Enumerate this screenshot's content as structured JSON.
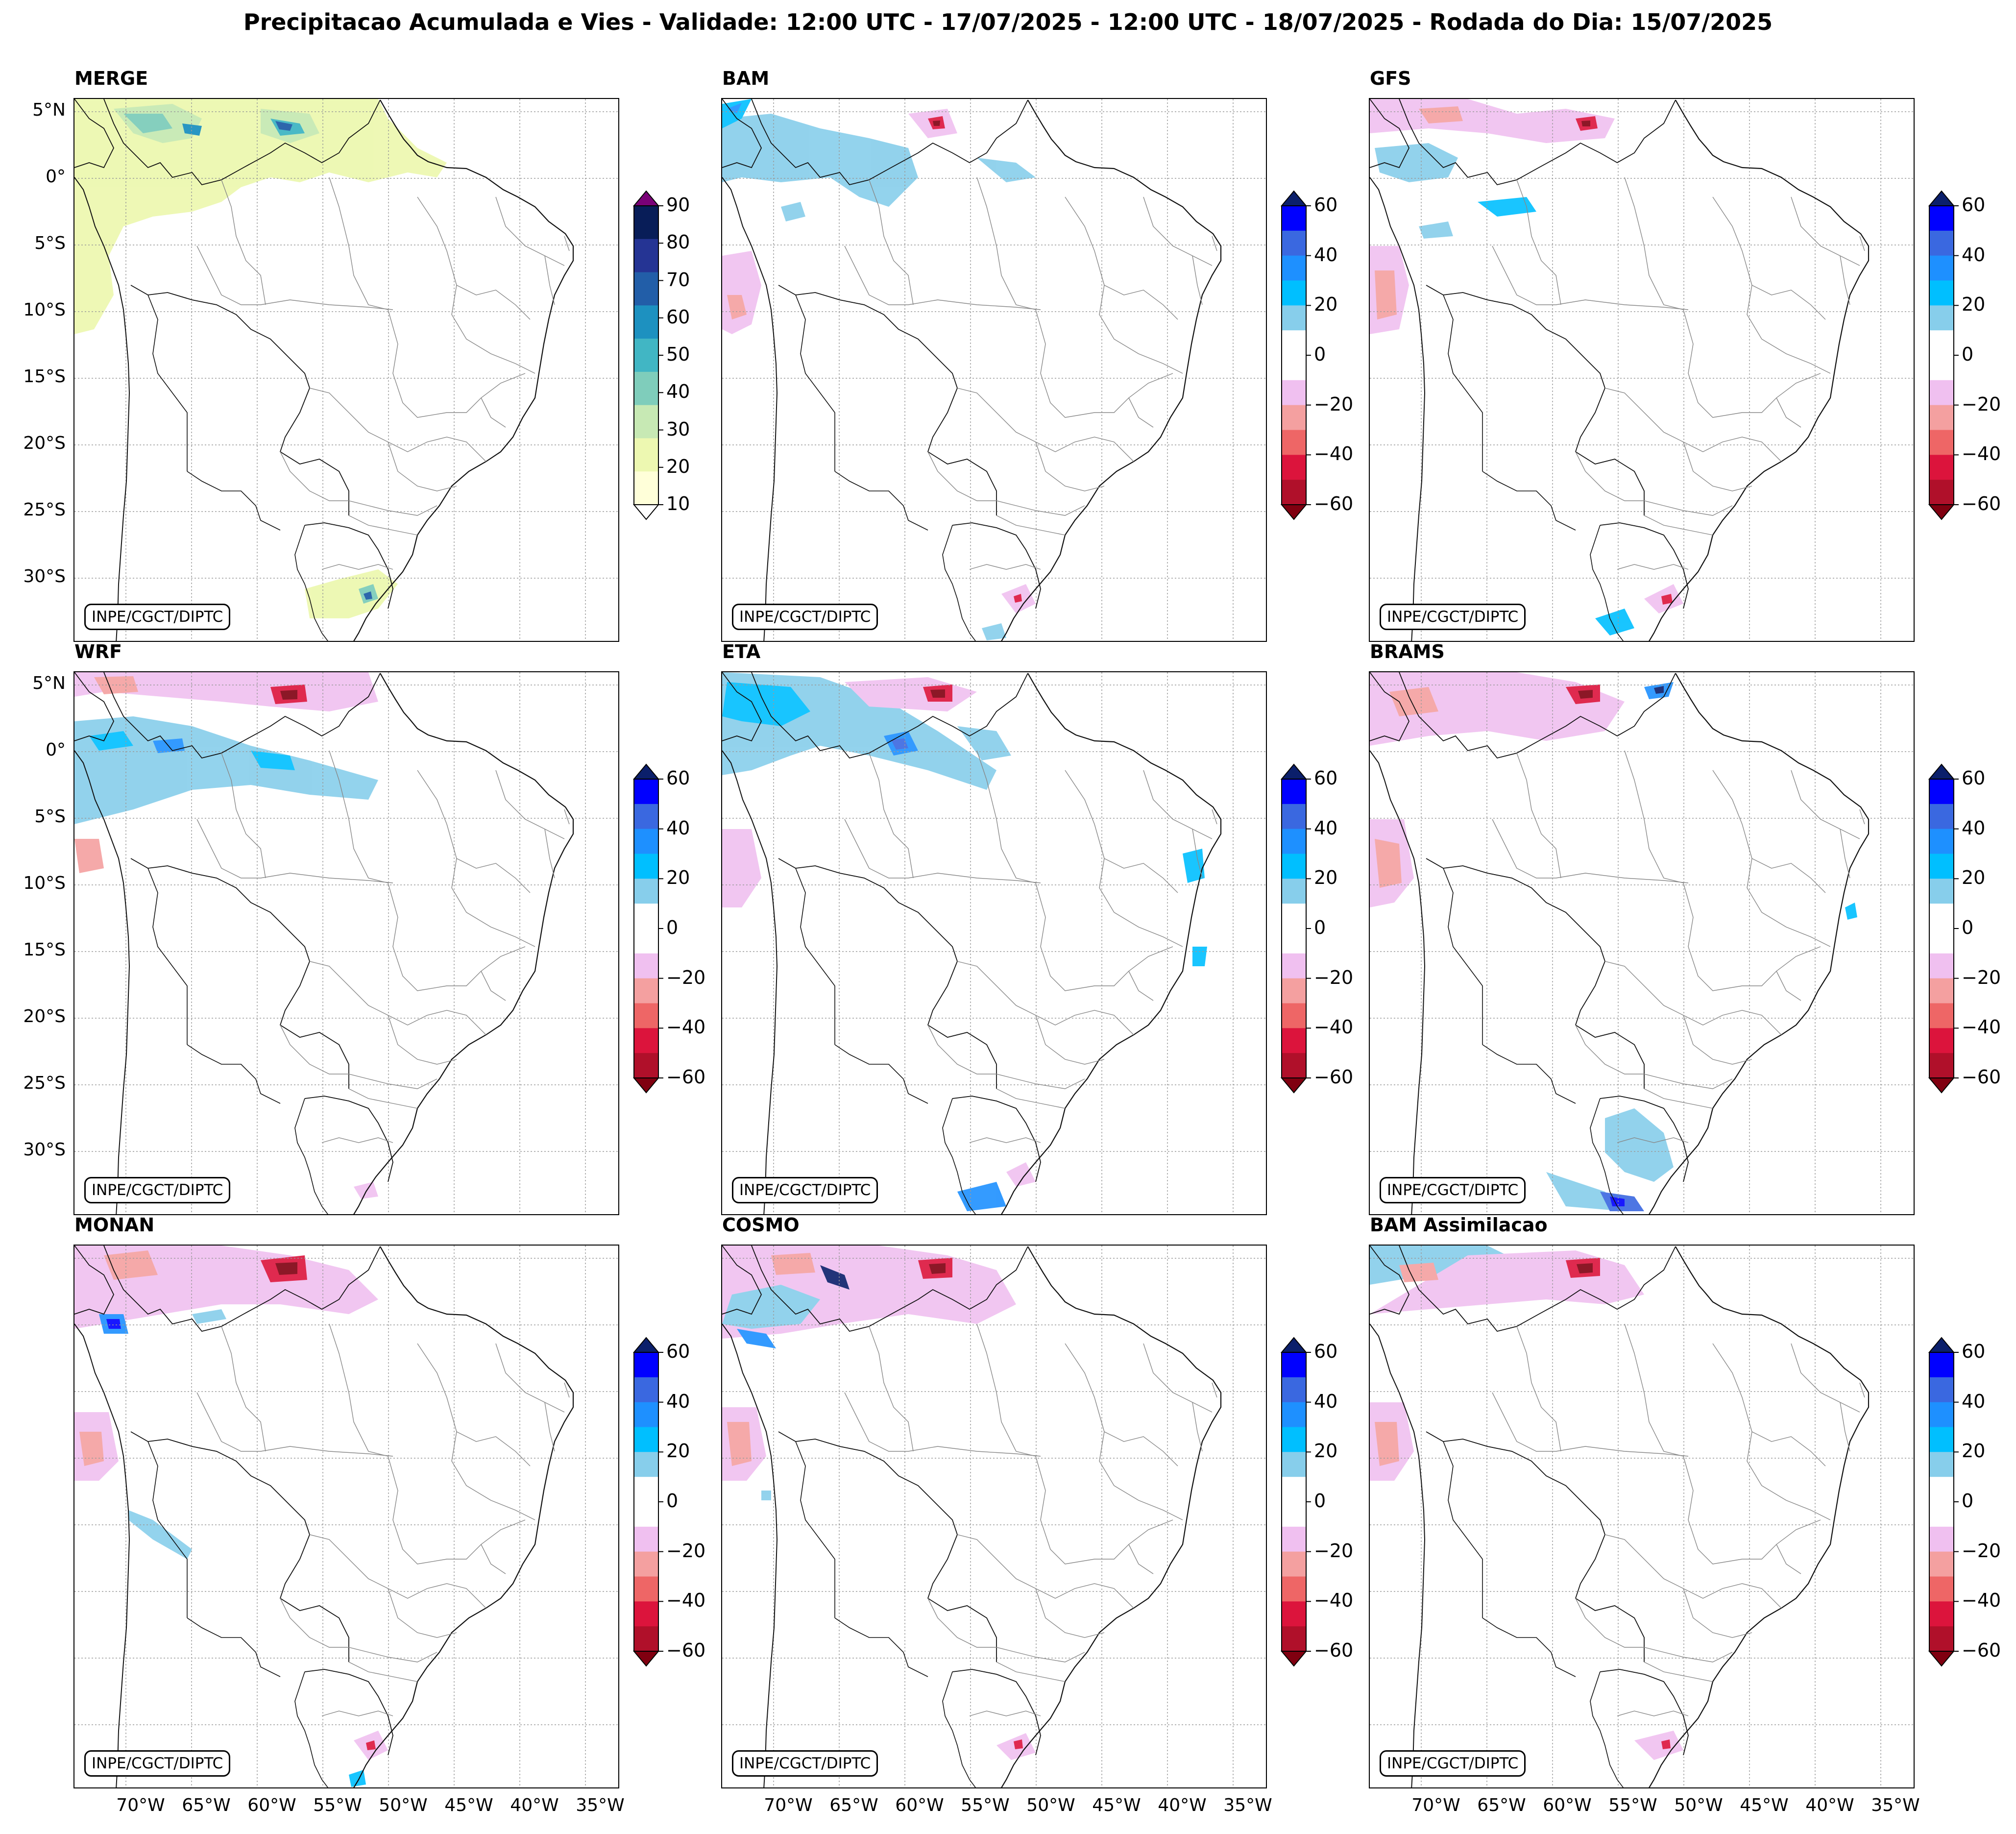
{
  "figure": {
    "title": "Precipitacao Acumulada e Vies - Validade: 12:00 UTC - 17/07/2025 - 12:00 UTC - 18/07/2025 - Rodada do Dia: 15/07/2025",
    "watermark": "INPE/CGCT/DIPTC"
  },
  "axes": {
    "lat_labels": [
      "5°N",
      "0°",
      "5°S",
      "10°S",
      "15°S",
      "20°S",
      "25°S",
      "30°S"
    ],
    "lon_labels": [
      "70°W",
      "65°W",
      "60°W",
      "55°W",
      "50°W",
      "45°W",
      "40°W",
      "35°W"
    ]
  },
  "colorbars": {
    "precip": {
      "ticks": [
        "90",
        "80",
        "70",
        "60",
        "50",
        "40",
        "30",
        "20",
        "10"
      ],
      "colors": [
        "#7a0177",
        "#081d58",
        "#253494",
        "#225ea8",
        "#1d91c0",
        "#41b6c4",
        "#7fcdbb",
        "#c7e9b4",
        "#edf8b1",
        "#ffffd9",
        "#ffffff"
      ]
    },
    "bias": {
      "ticks": [
        "60",
        "40",
        "20",
        "0",
        "−20",
        "−40",
        "−60"
      ],
      "colors": [
        "#0b1f6b",
        "#0000ff",
        "#3a68e0",
        "#1e90ff",
        "#00bfff",
        "#87ceeb",
        "#ffffff",
        "#ffffff",
        "#f0c0f0",
        "#f4a0a0",
        "#ee6666",
        "#dc143c",
        "#b0102a",
        "#800010"
      ]
    }
  },
  "panels": [
    {
      "name": "MERGE",
      "colorbar": "precip"
    },
    {
      "name": "BAM",
      "colorbar": "bias"
    },
    {
      "name": "GFS",
      "colorbar": "bias"
    },
    {
      "name": "WRF",
      "colorbar": "bias"
    },
    {
      "name": "ETA",
      "colorbar": "bias"
    },
    {
      "name": "BRAMS",
      "colorbar": "bias"
    },
    {
      "name": "MONAN",
      "colorbar": "bias"
    },
    {
      "name": "COSMO",
      "colorbar": "bias"
    },
    {
      "name": "BAM Assimilacao",
      "colorbar": "bias"
    }
  ]
}
